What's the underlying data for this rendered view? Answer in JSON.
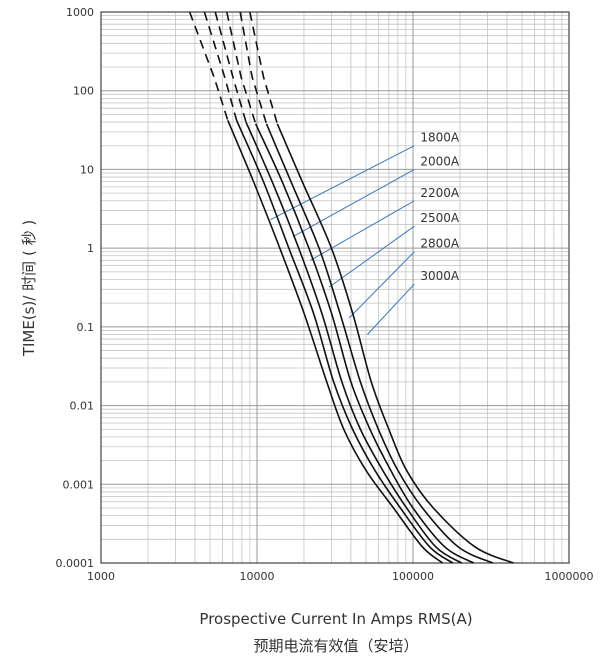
{
  "chart_data": {
    "type": "line",
    "title": "",
    "xlabel": "Prospective Current In Amps RMS(A)",
    "xlabel_zh": "预期电流有效值（安培）",
    "ylabel": "TIME(s)/ 时间 ( 秒 )",
    "x_scale": "log",
    "y_scale": "log",
    "xlim": [
      1000,
      1000000
    ],
    "ylim": [
      0.0001,
      1000
    ],
    "x_ticks": [
      {
        "value": 1000,
        "label": "1000"
      },
      {
        "value": 10000,
        "label": "10000"
      },
      {
        "value": 100000,
        "label": "100000"
      },
      {
        "value": 1000000,
        "label": "1000000"
      }
    ],
    "y_ticks": [
      {
        "value": 1000,
        "label": "1000"
      },
      {
        "value": 100,
        "label": "100"
      },
      {
        "value": 10,
        "label": "10"
      },
      {
        "value": 1,
        "label": "1"
      },
      {
        "value": 0.1,
        "label": "0.1"
      },
      {
        "value": 0.01,
        "label": "0.01"
      },
      {
        "value": 0.001,
        "label": "0.001"
      },
      {
        "value": 0.0001,
        "label": "0.0001"
      }
    ],
    "grid": true,
    "legend": "leader-line labels at right of curves",
    "colors": {
      "curve": "#111111",
      "grid_major": "#9a9a9a",
      "grid_minor": "#c4c4c4",
      "leader": "#3b78b8",
      "text": "#333333"
    },
    "series": [
      {
        "name": "1800A",
        "dashed_points": [
          [
            3700,
            1000
          ],
          [
            5300,
            150
          ],
          [
            6500,
            42
          ]
        ],
        "points": [
          [
            6500,
            42
          ],
          [
            9500,
            7
          ],
          [
            14000,
            1
          ],
          [
            20000,
            0.15
          ],
          [
            28000,
            0.02
          ],
          [
            36000,
            0.005
          ],
          [
            50000,
            0.0015
          ],
          [
            75000,
            0.0005
          ],
          [
            115000,
            0.00016
          ],
          [
            155000,
            0.0001
          ]
        ],
        "label_anchor": [
          12200,
          2.3
        ],
        "label_value": [
          102000,
          20
        ]
      },
      {
        "name": "2000A",
        "dashed_points": [
          [
            4600,
            1000
          ],
          [
            6200,
            150
          ],
          [
            7400,
            42
          ]
        ],
        "points": [
          [
            7400,
            42
          ],
          [
            11000,
            7
          ],
          [
            16000,
            1
          ],
          [
            23000,
            0.15
          ],
          [
            31000,
            0.02
          ],
          [
            41000,
            0.005
          ],
          [
            57000,
            0.0015
          ],
          [
            83000,
            0.0005
          ],
          [
            128000,
            0.00016
          ],
          [
            180000,
            0.0001
          ]
        ],
        "label_anchor": [
          17000,
          1.4
        ],
        "label_value": [
          102000,
          10
        ]
      },
      {
        "name": "2200A",
        "dashed_points": [
          [
            5400,
            1000
          ],
          [
            7000,
            150
          ],
          [
            8500,
            40
          ]
        ],
        "points": [
          [
            8500,
            40
          ],
          [
            12500,
            7
          ],
          [
            18500,
            1
          ],
          [
            26000,
            0.15
          ],
          [
            35000,
            0.02
          ],
          [
            46000,
            0.005
          ],
          [
            64000,
            0.0015
          ],
          [
            91000,
            0.0005
          ],
          [
            140000,
            0.00016
          ],
          [
            205000,
            0.0001
          ]
        ],
        "label_anchor": [
          22000,
          0.7
        ],
        "label_value": [
          102000,
          4
        ]
      },
      {
        "name": "2500A",
        "dashed_points": [
          [
            6400,
            1000
          ],
          [
            7900,
            150
          ],
          [
            9800,
            38
          ]
        ],
        "points": [
          [
            9800,
            38
          ],
          [
            14500,
            7
          ],
          [
            21500,
            1
          ],
          [
            30000,
            0.15
          ],
          [
            40000,
            0.02
          ],
          [
            53000,
            0.005
          ],
          [
            72000,
            0.0015
          ],
          [
            100000,
            0.0005
          ],
          [
            160000,
            0.00016
          ],
          [
            245000,
            0.0001
          ]
        ],
        "label_anchor": [
          29000,
          0.32
        ],
        "label_value": [
          102000,
          1.9
        ]
      },
      {
        "name": "2800A",
        "dashed_points": [
          [
            7800,
            1000
          ],
          [
            9300,
            150
          ],
          [
            11500,
            38
          ]
        ],
        "points": [
          [
            11500,
            38
          ],
          [
            16500,
            7
          ],
          [
            25000,
            1
          ],
          [
            34000,
            0.15
          ],
          [
            46000,
            0.02
          ],
          [
            60000,
            0.005
          ],
          [
            80000,
            0.0015
          ],
          [
            115000,
            0.0005
          ],
          [
            195000,
            0.00016
          ],
          [
            325000,
            0.0001
          ]
        ],
        "label_anchor": [
          39000,
          0.13
        ],
        "label_value": [
          102000,
          0.9
        ]
      },
      {
        "name": "3000A",
        "dashed_points": [
          [
            9000,
            1000
          ],
          [
            11000,
            150
          ],
          [
            13500,
            38
          ]
        ],
        "points": [
          [
            13500,
            38
          ],
          [
            19500,
            7
          ],
          [
            30000,
            1
          ],
          [
            41000,
            0.15
          ],
          [
            54000,
            0.02
          ],
          [
            70000,
            0.005
          ],
          [
            91000,
            0.0015
          ],
          [
            135000,
            0.0005
          ],
          [
            250000,
            0.00016
          ],
          [
            440000,
            0.0001
          ]
        ],
        "label_anchor": [
          51000,
          0.08
        ],
        "label_value": [
          102000,
          0.35
        ]
      }
    ]
  }
}
